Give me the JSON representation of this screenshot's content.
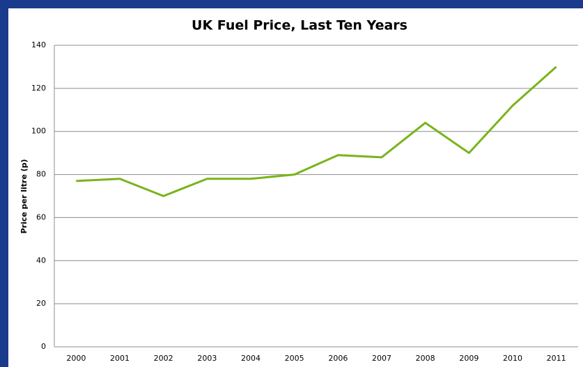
{
  "chart_data": {
    "type": "line",
    "title": "UK Fuel Price, Last Ten Years",
    "y_label": "Price per litre (p)",
    "categories": [
      "2000",
      "2001",
      "2002",
      "2003",
      "2004",
      "2005",
      "2006",
      "2007",
      "2008",
      "2009",
      "2010",
      "2011"
    ],
    "values": [
      77,
      78,
      70,
      78,
      78,
      80,
      89,
      88,
      104,
      90,
      112,
      130
    ],
    "color": "#78b41a",
    "ylim": [
      0,
      140
    ],
    "yticks": [
      0,
      20,
      40,
      60,
      80,
      100,
      120,
      140
    ],
    "grid": true
  }
}
